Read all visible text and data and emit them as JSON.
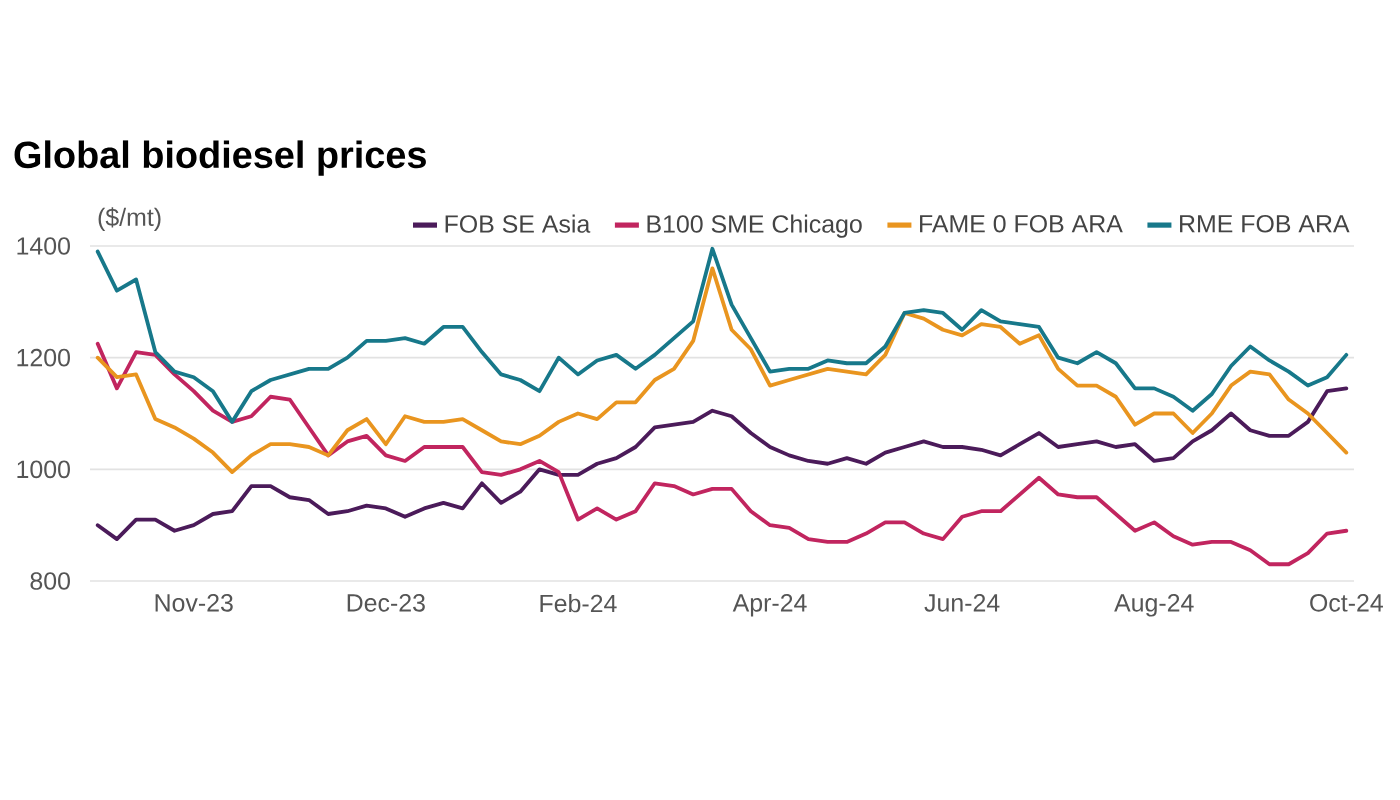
{
  "chart_data": {
    "type": "line",
    "title": "Global biodiesel prices",
    "ylabel": "($/mt)",
    "categories": [
      null,
      null,
      null,
      null,
      null,
      "Nov-23",
      null,
      null,
      null,
      null,
      null,
      null,
      null,
      null,
      null,
      "Dec-23",
      null,
      null,
      null,
      null,
      null,
      null,
      null,
      null,
      null,
      "Feb-24",
      null,
      null,
      null,
      null,
      null,
      null,
      null,
      null,
      null,
      "Apr-24",
      null,
      null,
      null,
      null,
      null,
      null,
      null,
      null,
      null,
      "Jun-24",
      null,
      null,
      null,
      null,
      null,
      null,
      null,
      null,
      null,
      "Aug-24",
      null,
      null,
      null,
      null,
      null,
      null,
      null,
      null,
      null,
      "Oct-24"
    ],
    "series": [
      {
        "name": "FOB SE Asia",
        "color": "#4b1b5a",
        "values": [
          900,
          875,
          910,
          910,
          890,
          900,
          920,
          925,
          970,
          970,
          950,
          945,
          920,
          925,
          935,
          930,
          915,
          930,
          940,
          930,
          975,
          940,
          960,
          1000,
          990,
          990,
          1010,
          1020,
          1040,
          1075,
          1080,
          1085,
          1105,
          1095,
          1065,
          1040,
          1025,
          1015,
          1010,
          1020,
          1010,
          1030,
          1040,
          1050,
          1040,
          1040,
          1035,
          1025,
          1045,
          1065,
          1040,
          1045,
          1050,
          1040,
          1045,
          1015,
          1020,
          1050,
          1070,
          1100,
          1070,
          1060,
          1060,
          1085,
          1140,
          1145
        ]
      },
      {
        "name": "B100 SME Chicago",
        "color": "#c1255f",
        "values": [
          1225,
          1145,
          1210,
          1205,
          1170,
          1140,
          1105,
          1085,
          1095,
          1130,
          1125,
          1075,
          1025,
          1050,
          1060,
          1025,
          1015,
          1040,
          1040,
          1040,
          995,
          990,
          1000,
          1015,
          995,
          910,
          930,
          910,
          925,
          975,
          970,
          955,
          965,
          965,
          925,
          900,
          895,
          875,
          870,
          870,
          885,
          905,
          905,
          885,
          875,
          915,
          925,
          925,
          955,
          985,
          955,
          950,
          950,
          920,
          890,
          905,
          880,
          865,
          870,
          870,
          855,
          830,
          830,
          850,
          885,
          890
        ]
      },
      {
        "name": "FAME 0 FOB ARA",
        "color": "#e9951f",
        "values": [
          1200,
          1165,
          1170,
          1090,
          1075,
          1055,
          1030,
          995,
          1025,
          1045,
          1045,
          1040,
          1025,
          1070,
          1090,
          1045,
          1095,
          1085,
          1085,
          1090,
          1070,
          1050,
          1045,
          1060,
          1085,
          1100,
          1090,
          1120,
          1120,
          1160,
          1180,
          1230,
          1360,
          1250,
          1215,
          1150,
          1160,
          1170,
          1180,
          1175,
          1170,
          1205,
          1280,
          1270,
          1250,
          1240,
          1260,
          1255,
          1225,
          1240,
          1180,
          1150,
          1150,
          1130,
          1080,
          1100,
          1100,
          1065,
          1100,
          1150,
          1175,
          1170,
          1125,
          1100,
          1065,
          1030
        ]
      },
      {
        "name": "RME FOB ARA",
        "color": "#17788a",
        "values": [
          1390,
          1320,
          1340,
          1210,
          1175,
          1165,
          1140,
          1085,
          1140,
          1160,
          1170,
          1180,
          1180,
          1200,
          1230,
          1230,
          1235,
          1225,
          1255,
          1255,
          1210,
          1170,
          1160,
          1140,
          1200,
          1170,
          1195,
          1205,
          1180,
          1205,
          1235,
          1265,
          1395,
          1295,
          1235,
          1175,
          1180,
          1180,
          1195,
          1190,
          1190,
          1220,
          1280,
          1285,
          1280,
          1250,
          1285,
          1265,
          1260,
          1255,
          1200,
          1190,
          1210,
          1190,
          1145,
          1145,
          1130,
          1105,
          1135,
          1185,
          1220,
          1195,
          1175,
          1150,
          1165,
          1205
        ]
      }
    ],
    "ylim": [
      800,
      1400
    ],
    "yticks": [
      800,
      1000,
      1200,
      1400
    ],
    "grid": "y",
    "legend": "top right"
  }
}
